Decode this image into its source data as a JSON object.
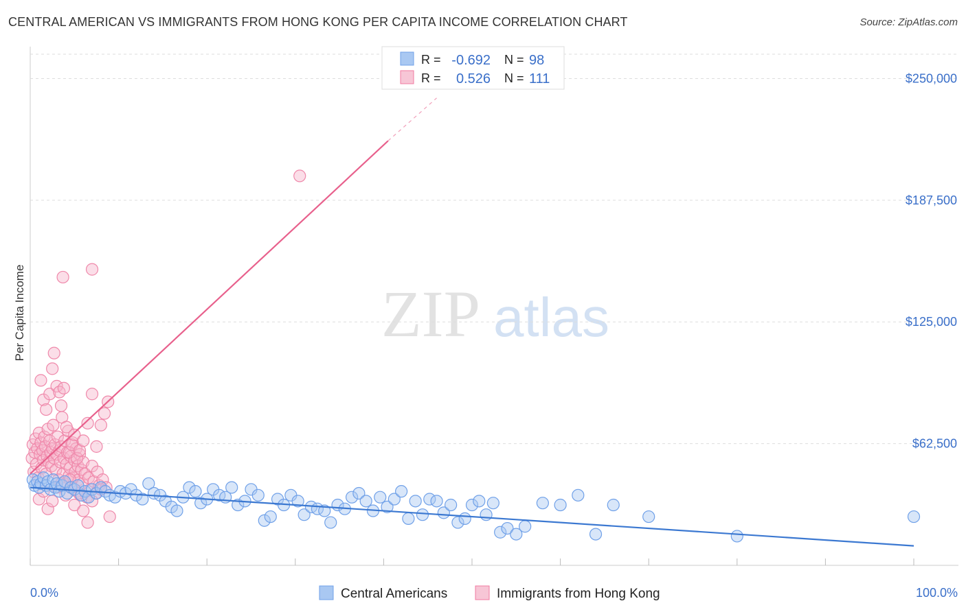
{
  "title": "CENTRAL AMERICAN VS IMMIGRANTS FROM HONG KONG PER CAPITA INCOME CORRELATION CHART",
  "source": "Source: ZipAtlas.com",
  "watermark": {
    "zip": "ZIP",
    "atlas": "atlas"
  },
  "legend": {
    "rows": [
      {
        "r_label": "R =",
        "r_value": "-0.692",
        "n_label": "N =",
        "n_value": "98",
        "color": "#6fa0e8"
      },
      {
        "r_label": "R =",
        "r_value": "0.526",
        "n_label": "N =",
        "n_value": "111",
        "color": "#f07aa0"
      }
    ]
  },
  "colors": {
    "blue_fill": "#a9c8f2",
    "blue_stroke": "#6fa0e8",
    "blue_line": "#3b78d1",
    "pink_fill": "#f7b6cb",
    "pink_stroke": "#ef88aa",
    "pink_line": "#e8608c",
    "grid": "#dddddd",
    "axis_text": "#3a6fc9"
  },
  "chart_data": {
    "type": "scatter",
    "title": "CENTRAL AMERICAN VS IMMIGRANTS FROM HONG KONG PER CAPITA INCOME CORRELATION CHART",
    "xlabel": "",
    "ylabel": "Per Capita Income",
    "xlim": [
      0,
      100
    ],
    "ylim": [
      0,
      262500
    ],
    "x_tick_labels": [
      "0.0%",
      "100.0%"
    ],
    "y_ticks": [
      62500,
      125000,
      187500,
      250000
    ],
    "y_tick_labels": [
      "$62,500",
      "$125,000",
      "$187,500",
      "$250,000"
    ],
    "grid": true,
    "series": [
      {
        "name": "Central Americans",
        "r": -0.692,
        "n": 98,
        "trend": {
          "x": [
            0,
            100
          ],
          "y": [
            40000,
            10000
          ]
        },
        "points": [
          [
            0.3,
            44000
          ],
          [
            0.5,
            41000
          ],
          [
            0.8,
            43000
          ],
          [
            1.0,
            40000
          ],
          [
            1.2,
            42000
          ],
          [
            1.5,
            45000
          ],
          [
            1.8,
            41000
          ],
          [
            2.0,
            43000
          ],
          [
            2.3,
            39000
          ],
          [
            2.6,
            44000
          ],
          [
            2.8,
            40000
          ],
          [
            3.0,
            42000
          ],
          [
            3.3,
            38000
          ],
          [
            3.6,
            41000
          ],
          [
            3.9,
            43000
          ],
          [
            4.2,
            37000
          ],
          [
            4.6,
            40000
          ],
          [
            5.0,
            39000
          ],
          [
            5.4,
            41000
          ],
          [
            5.8,
            36000
          ],
          [
            6.2,
            38000
          ],
          [
            6.6,
            35000
          ],
          [
            7.0,
            39000
          ],
          [
            7.5,
            37000
          ],
          [
            8.0,
            40000
          ],
          [
            8.5,
            38000
          ],
          [
            9.0,
            36000
          ],
          [
            9.6,
            35000
          ],
          [
            10.2,
            38000
          ],
          [
            10.8,
            37000
          ],
          [
            11.4,
            39000
          ],
          [
            12.0,
            36000
          ],
          [
            12.7,
            34000
          ],
          [
            13.4,
            42000
          ],
          [
            14.0,
            37000
          ],
          [
            14.7,
            36000
          ],
          [
            15.3,
            33000
          ],
          [
            16.0,
            30000
          ],
          [
            16.6,
            28000
          ],
          [
            17.3,
            35000
          ],
          [
            18.0,
            40000
          ],
          [
            18.7,
            38000
          ],
          [
            19.3,
            32000
          ],
          [
            20.0,
            34000
          ],
          [
            20.7,
            39000
          ],
          [
            21.4,
            36000
          ],
          [
            22.1,
            35000
          ],
          [
            22.8,
            40000
          ],
          [
            23.5,
            31000
          ],
          [
            24.3,
            33000
          ],
          [
            25.0,
            39000
          ],
          [
            25.8,
            36000
          ],
          [
            26.5,
            23000
          ],
          [
            27.2,
            25000
          ],
          [
            28.0,
            34000
          ],
          [
            28.7,
            31000
          ],
          [
            29.5,
            36000
          ],
          [
            30.3,
            33000
          ],
          [
            31.0,
            26000
          ],
          [
            31.8,
            30000
          ],
          [
            32.5,
            29000
          ],
          [
            33.3,
            28000
          ],
          [
            34.0,
            22000
          ],
          [
            34.8,
            31000
          ],
          [
            35.6,
            29000
          ],
          [
            36.4,
            35000
          ],
          [
            37.2,
            37000
          ],
          [
            38.0,
            33000
          ],
          [
            38.8,
            28000
          ],
          [
            39.6,
            35000
          ],
          [
            40.4,
            30000
          ],
          [
            41.2,
            34000
          ],
          [
            42.0,
            38000
          ],
          [
            42.8,
            24000
          ],
          [
            43.6,
            33000
          ],
          [
            44.4,
            26000
          ],
          [
            45.2,
            34000
          ],
          [
            46.0,
            33000
          ],
          [
            46.8,
            27000
          ],
          [
            47.6,
            31000
          ],
          [
            48.4,
            22000
          ],
          [
            49.2,
            24000
          ],
          [
            50.0,
            31000
          ],
          [
            50.8,
            33000
          ],
          [
            51.6,
            26000
          ],
          [
            52.4,
            32000
          ],
          [
            53.2,
            17000
          ],
          [
            54.0,
            19000
          ],
          [
            55.0,
            16000
          ],
          [
            56.0,
            20000
          ],
          [
            58.0,
            32000
          ],
          [
            60.0,
            31000
          ],
          [
            62.0,
            36000
          ],
          [
            64.0,
            16000
          ],
          [
            66.0,
            31000
          ],
          [
            70.0,
            25000
          ],
          [
            80.0,
            15000
          ],
          [
            100.0,
            25000
          ]
        ]
      },
      {
        "name": "Immigrants from Hong Kong",
        "r": 0.526,
        "n": 111,
        "trend": {
          "x": [
            0,
            40.5
          ],
          "y": [
            47000,
            218000
          ]
        },
        "trend_dashed": {
          "x": [
            40.5,
            46
          ],
          "y": [
            218000,
            240000
          ]
        },
        "points": [
          [
            0.2,
            55000
          ],
          [
            0.3,
            62000
          ],
          [
            0.4,
            48000
          ],
          [
            0.5,
            58000
          ],
          [
            0.6,
            65000
          ],
          [
            0.7,
            52000
          ],
          [
            0.8,
            60000
          ],
          [
            0.9,
            45000
          ],
          [
            1.0,
            68000
          ],
          [
            1.1,
            57000
          ],
          [
            1.2,
            63000
          ],
          [
            1.3,
            50000
          ],
          [
            1.4,
            59000
          ],
          [
            1.5,
            54000
          ],
          [
            1.6,
            66000
          ],
          [
            1.7,
            61000
          ],
          [
            1.8,
            47000
          ],
          [
            1.9,
            56000
          ],
          [
            2.0,
            70000
          ],
          [
            2.1,
            53000
          ],
          [
            2.2,
            64000
          ],
          [
            2.3,
            58000
          ],
          [
            2.4,
            51000
          ],
          [
            2.5,
            60000
          ],
          [
            2.6,
            72000
          ],
          [
            2.7,
            55000
          ],
          [
            2.8,
            62000
          ],
          [
            2.9,
            49000
          ],
          [
            3.0,
            57000
          ],
          [
            3.1,
            66000
          ],
          [
            3.2,
            44000
          ],
          [
            3.3,
            59000
          ],
          [
            3.4,
            53000
          ],
          [
            3.5,
            61000
          ],
          [
            3.6,
            76000
          ],
          [
            3.7,
            47000
          ],
          [
            3.8,
            55000
          ],
          [
            3.9,
            64000
          ],
          [
            4.0,
            42000
          ],
          [
            4.1,
            52000
          ],
          [
            4.2,
            58000
          ],
          [
            4.3,
            69000
          ],
          [
            4.4,
            46000
          ],
          [
            4.5,
            50000
          ],
          [
            4.6,
            56000
          ],
          [
            4.7,
            40000
          ],
          [
            4.8,
            63000
          ],
          [
            4.9,
            45000
          ],
          [
            5.0,
            54000
          ],
          [
            5.1,
            48000
          ],
          [
            5.2,
            60000
          ],
          [
            5.3,
            38000
          ],
          [
            5.4,
            51000
          ],
          [
            5.5,
            44000
          ],
          [
            5.6,
            57000
          ],
          [
            5.7,
            36000
          ],
          [
            5.8,
            49000
          ],
          [
            5.9,
            42000
          ],
          [
            6.0,
            53000
          ],
          [
            6.2,
            47000
          ],
          [
            6.4,
            35000
          ],
          [
            6.6,
            45000
          ],
          [
            6.8,
            39000
          ],
          [
            7.0,
            51000
          ],
          [
            7.2,
            43000
          ],
          [
            7.4,
            37000
          ],
          [
            7.6,
            48000
          ],
          [
            7.8,
            41000
          ],
          [
            8.0,
            72000
          ],
          [
            8.2,
            44000
          ],
          [
            8.4,
            78000
          ],
          [
            8.6,
            40000
          ],
          [
            8.8,
            84000
          ],
          [
            9.0,
            25000
          ],
          [
            1.2,
            95000
          ],
          [
            1.5,
            85000
          ],
          [
            1.8,
            80000
          ],
          [
            2.2,
            88000
          ],
          [
            2.5,
            101000
          ],
          [
            2.7,
            109000
          ],
          [
            3.0,
            92000
          ],
          [
            3.3,
            89000
          ],
          [
            3.5,
            82000
          ],
          [
            3.8,
            91000
          ],
          [
            4.1,
            71000
          ],
          [
            4.4,
            58000
          ],
          [
            4.7,
            62000
          ],
          [
            5.0,
            67000
          ],
          [
            5.3,
            55000
          ],
          [
            5.6,
            59000
          ],
          [
            6.0,
            64000
          ],
          [
            6.5,
            73000
          ],
          [
            7.0,
            88000
          ],
          [
            7.5,
            61000
          ],
          [
            8.0,
            39000
          ],
          [
            1.0,
            34000
          ],
          [
            1.5,
            38000
          ],
          [
            2.0,
            29000
          ],
          [
            2.5,
            33000
          ],
          [
            3.0,
            40000
          ],
          [
            3.5,
            42000
          ],
          [
            4.0,
            36000
          ],
          [
            4.5,
            44000
          ],
          [
            5.0,
            31000
          ],
          [
            5.5,
            37000
          ],
          [
            6.0,
            28000
          ],
          [
            6.5,
            22000
          ],
          [
            7.0,
            33000
          ],
          [
            3.7,
            148000
          ],
          [
            7.0,
            152000
          ],
          [
            30.5,
            200000
          ]
        ]
      }
    ]
  },
  "bottom_legend": {
    "items": [
      {
        "label": "Central Americans"
      },
      {
        "label": "Immigrants from Hong Kong"
      }
    ]
  }
}
